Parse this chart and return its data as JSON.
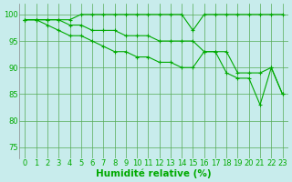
{
  "title": "",
  "xlabel": "Humidité relative (%)",
  "ylabel": "",
  "bg_color": "#c8ecec",
  "grid_color": "#55aa55",
  "line_color": "#00aa00",
  "xlim": [
    -0.5,
    23.5
  ],
  "ylim": [
    73,
    102
  ],
  "yticks": [
    75,
    80,
    85,
    90,
    95,
    100
  ],
  "xticks": [
    0,
    1,
    2,
    3,
    4,
    5,
    6,
    7,
    8,
    9,
    10,
    11,
    12,
    13,
    14,
    15,
    16,
    17,
    18,
    19,
    20,
    21,
    22,
    23
  ],
  "line1_x": [
    0,
    1,
    2,
    3,
    4,
    5,
    6,
    7,
    8,
    9,
    10,
    11,
    12,
    13,
    14,
    15,
    16,
    17,
    18,
    19,
    20,
    21,
    22,
    23
  ],
  "line1_y": [
    99,
    99,
    99,
    99,
    99,
    100,
    100,
    100,
    100,
    100,
    100,
    100,
    100,
    100,
    100,
    97,
    100,
    100,
    100,
    100,
    100,
    100,
    100,
    100
  ],
  "line2_x": [
    0,
    1,
    2,
    3,
    4,
    5,
    6,
    7,
    8,
    9,
    10,
    11,
    12,
    13,
    14,
    15,
    16,
    17,
    18,
    19,
    20,
    21,
    22,
    23
  ],
  "line2_y": [
    99,
    99,
    99,
    99,
    98,
    98,
    97,
    97,
    97,
    96,
    96,
    96,
    95,
    95,
    95,
    95,
    93,
    93,
    93,
    89,
    89,
    89,
    90,
    85
  ],
  "line3_x": [
    0,
    1,
    2,
    3,
    4,
    5,
    6,
    7,
    8,
    9,
    10,
    11,
    12,
    13,
    14,
    15,
    16,
    17,
    18,
    19,
    20,
    21,
    22,
    23
  ],
  "line3_y": [
    99,
    99,
    98,
    97,
    96,
    96,
    95,
    94,
    93,
    93,
    92,
    92,
    91,
    91,
    90,
    90,
    93,
    93,
    89,
    88,
    88,
    83,
    90,
    85
  ],
  "marker": "+",
  "marker_size": 3.0,
  "linewidth": 0.8,
  "xlabel_fontsize": 7.5,
  "tick_fontsize": 6.0
}
